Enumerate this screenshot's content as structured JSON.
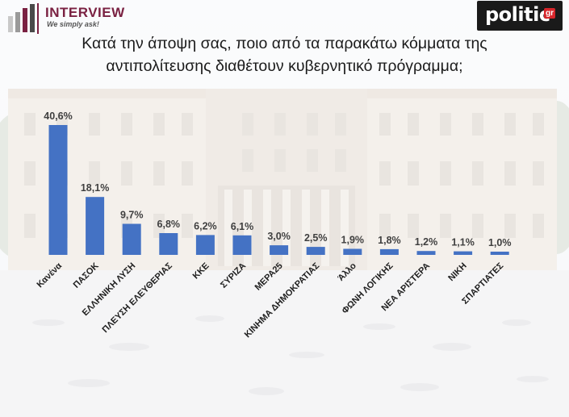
{
  "header": {
    "brand_name": "INTERVIEW",
    "brand_slogan": "We simply ask!",
    "partner_logo": "politic",
    "partner_logo_suffix": "gr"
  },
  "title_lines": [
    "Κατά την άποψη σας, ποιο από τα παρακάτω κόμματα της",
    "αντιπολίτευσης διαθέτουν κυβερνητικό πρόγραμμα;"
  ],
  "colors": {
    "bar": "#4472c4",
    "brand": "#7a2142",
    "partner_bg": "#1a1a1a",
    "partner_accent": "#d7262b"
  },
  "chart_data": {
    "type": "bar",
    "title": "Κατά την άποψη σας, ποιο από τα παρακάτω κόμματα της αντιπολίτευσης διαθέτουν κυβερνητικό πρόγραμμα;",
    "categories": [
      "Κανένα",
      "ΠΑΣΟΚ",
      "ΕΛΛΗΝΙΚΗ ΛΥΣΗ",
      "ΠΛΕΥΣΗ ΕΛΕΥΘΕΡΙΑΣ",
      "ΚΚΕ",
      "ΣΥΡΙΖΑ",
      "ΜΕΡΑ25",
      "ΚΙΝΗΜΑ ΔΗΜΟΚΡΑΤΙΑΣ",
      "Άλλο",
      "ΦΩΝΗ ΛΟΓΙΚΗΣ",
      "ΝΕΑ ΑΡΙΣΤΕΡΑ",
      "ΝΙΚΗ",
      "ΣΠΑΡΤΙΑΤΕΣ"
    ],
    "values": [
      40.6,
      18.1,
      9.7,
      6.8,
      6.2,
      6.1,
      3.0,
      2.5,
      1.9,
      1.8,
      1.2,
      1.1,
      1.0
    ],
    "value_labels": [
      "40,6%",
      "18,1%",
      "9,7%",
      "6,8%",
      "6,2%",
      "6,1%",
      "3,0%",
      "2,5%",
      "1,9%",
      "1,8%",
      "1,2%",
      "1,1%",
      "1,0%"
    ],
    "ylim": [
      0,
      40.6
    ],
    "grid": false,
    "xlabel": "",
    "ylabel": ""
  }
}
